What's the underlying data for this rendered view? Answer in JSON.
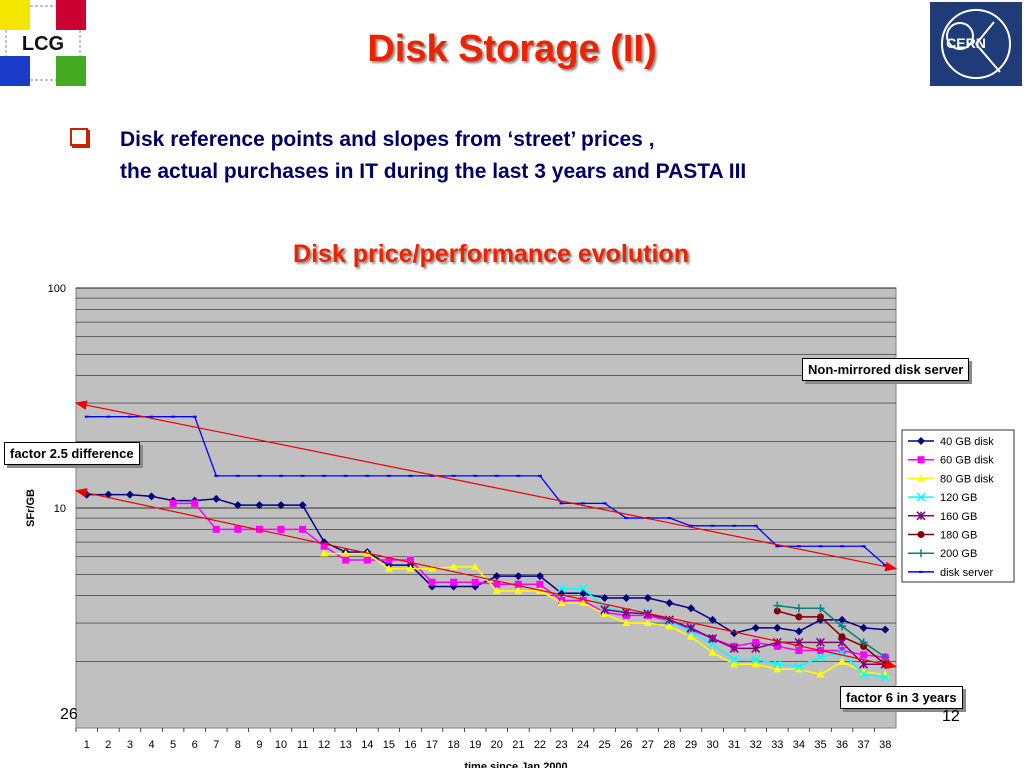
{
  "slide": {
    "title": "Disk Storage (II)",
    "bullet_line1": "Disk reference points and slopes from ‘street’ prices ,",
    "bullet_line2": "the actual purchases in IT during the last  3 years and PASTA III",
    "logo_left_text": "LCG",
    "logo_right_text": "CERN",
    "footer_left": "26",
    "footer_right": "12"
  },
  "annotations": {
    "non_mirrored": "Non-mirrored disk server",
    "factor_25": "factor 2.5 difference",
    "factor_6": "factor 6 in 3 years"
  },
  "colors": {
    "title": "#ee2200",
    "text": "#000066",
    "plot_bg": "#c0c0c0",
    "trend": "#ee0000"
  },
  "chart_data": {
    "type": "line",
    "title": "Disk price/performance evolution",
    "xlabel": "time since Jan 2000",
    "ylabel": "SFr/GB",
    "yscale": "log",
    "ylim": [
      1,
      100
    ],
    "y_ticks": [
      "100",
      "10"
    ],
    "x": [
      1,
      2,
      3,
      4,
      5,
      6,
      7,
      8,
      9,
      10,
      11,
      12,
      13,
      14,
      15,
      16,
      17,
      18,
      19,
      20,
      21,
      22,
      23,
      24,
      25,
      26,
      27,
      28,
      29,
      30,
      31,
      32,
      33,
      34,
      35,
      36,
      37,
      38
    ],
    "legend_position": "right",
    "series": [
      {
        "name": "40 GB disk",
        "color": "#000080",
        "marker": "diamond",
        "values": [
          11.5,
          11.5,
          11.5,
          11.3,
          10.8,
          10.8,
          11,
          10.3,
          10.3,
          10.3,
          10.3,
          7,
          6.3,
          6.3,
          5.5,
          5.5,
          4.4,
          4.4,
          4.4,
          4.9,
          4.9,
          4.9,
          4.1,
          4.1,
          3.9,
          3.9,
          3.9,
          3.7,
          3.5,
          3.1,
          2.7,
          2.85,
          2.85,
          2.75,
          3.1,
          3.1,
          2.85,
          2.8
        ]
      },
      {
        "name": "60 GB disk",
        "color": "#ff00ff",
        "marker": "square",
        "values": [
          null,
          null,
          null,
          null,
          10.5,
          10.5,
          8,
          8,
          8,
          8,
          8,
          6.7,
          5.8,
          5.8,
          5.8,
          5.8,
          4.6,
          4.6,
          4.6,
          4.5,
          4.5,
          4.5,
          3.8,
          3.8,
          3.35,
          3.25,
          3.25,
          3.05,
          2.8,
          2.55,
          2.35,
          2.45,
          2.35,
          2.25,
          2.25,
          2.25,
          2.15,
          2.1
        ]
      },
      {
        "name": "80 GB disk",
        "color": "#ffff00",
        "marker": "triangle",
        "values": [
          null,
          null,
          null,
          null,
          null,
          null,
          null,
          null,
          null,
          null,
          null,
          6.2,
          6.2,
          6.2,
          5.3,
          5.3,
          5.3,
          5.4,
          5.4,
          4.2,
          4.2,
          4.2,
          3.7,
          3.7,
          3.3,
          3.0,
          3.0,
          2.9,
          2.6,
          2.2,
          1.95,
          1.95,
          1.85,
          1.85,
          1.75,
          2.0,
          1.8,
          1.75
        ]
      },
      {
        "name": "120 GB",
        "color": "#00ffff",
        "marker": "x",
        "values": [
          null,
          null,
          null,
          null,
          null,
          null,
          null,
          null,
          null,
          null,
          null,
          null,
          null,
          null,
          null,
          null,
          null,
          null,
          null,
          null,
          null,
          null,
          4.3,
          4.3,
          3.55,
          3.35,
          3.35,
          3.05,
          2.75,
          2.4,
          2.05,
          2.05,
          1.95,
          1.9,
          2.1,
          2.2,
          1.75,
          1.7
        ]
      },
      {
        "name": "160 GB",
        "color": "#800080",
        "marker": "star",
        "values": [
          null,
          null,
          null,
          null,
          null,
          null,
          null,
          null,
          null,
          null,
          null,
          null,
          null,
          null,
          null,
          null,
          null,
          null,
          null,
          null,
          null,
          null,
          null,
          null,
          3.45,
          3.35,
          3.3,
          3.1,
          2.85,
          2.55,
          2.3,
          2.3,
          2.45,
          2.45,
          2.45,
          2.45,
          1.95,
          1.95
        ]
      },
      {
        "name": "180 GB",
        "color": "#800000",
        "marker": "circle",
        "values": [
          null,
          null,
          null,
          null,
          null,
          null,
          null,
          null,
          null,
          null,
          null,
          null,
          null,
          null,
          null,
          null,
          null,
          null,
          null,
          null,
          null,
          null,
          null,
          null,
          null,
          null,
          null,
          null,
          null,
          null,
          null,
          null,
          3.4,
          3.2,
          3.2,
          2.6,
          2.35,
          1.95
        ]
      },
      {
        "name": "200 GB",
        "color": "#008080",
        "marker": "plus",
        "values": [
          null,
          null,
          null,
          null,
          null,
          null,
          null,
          null,
          null,
          null,
          null,
          null,
          null,
          null,
          null,
          null,
          null,
          null,
          null,
          null,
          null,
          null,
          null,
          null,
          null,
          null,
          null,
          null,
          null,
          null,
          null,
          null,
          3.6,
          3.5,
          3.5,
          2.9,
          2.45,
          2.1
        ]
      },
      {
        "name": "disk server",
        "color": "#0000ff",
        "marker": "dash",
        "values": [
          26,
          26,
          26,
          26,
          26,
          26,
          14,
          14,
          14,
          14,
          14,
          14,
          14,
          14,
          14,
          14,
          14,
          14,
          14,
          14,
          14,
          14,
          10.5,
          10.5,
          10.5,
          9,
          9,
          9,
          8.3,
          8.3,
          8.3,
          8.3,
          6.7,
          6.7,
          6.7,
          6.7,
          6.7,
          5.5
        ]
      }
    ],
    "trend_lines": [
      {
        "from": [
          0.5,
          30
        ],
        "to": [
          38.5,
          5.3
        ]
      },
      {
        "from": [
          0.5,
          12
        ],
        "to": [
          38.5,
          1.9
        ]
      }
    ]
  }
}
